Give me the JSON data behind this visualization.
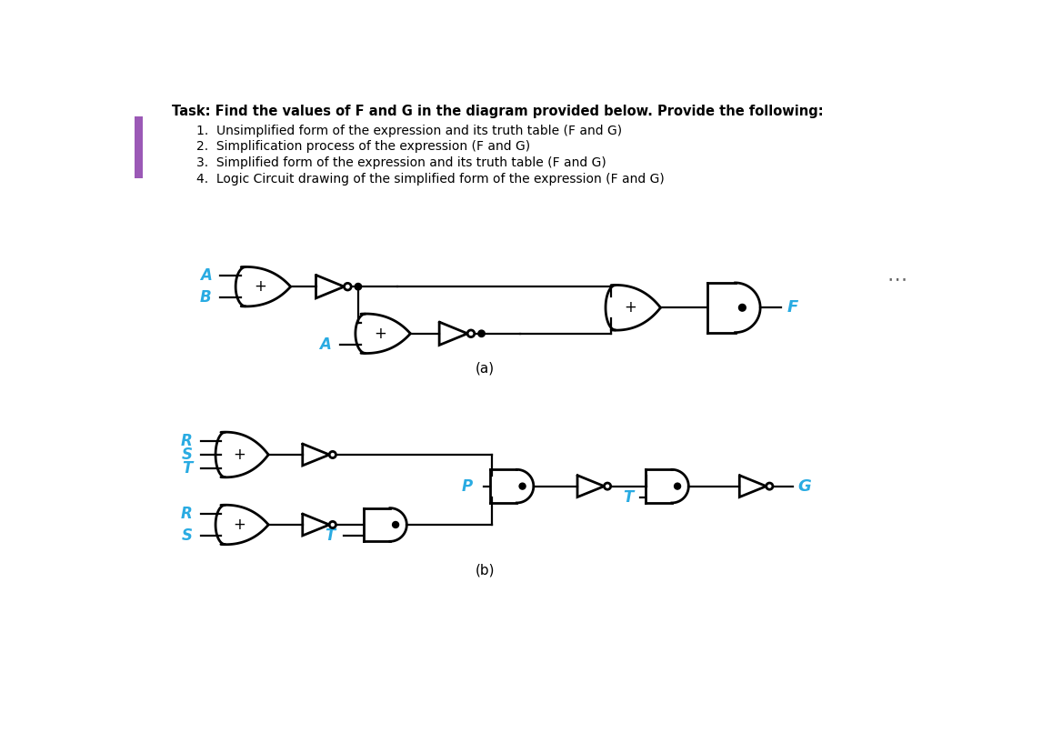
{
  "title": "Task: Find the values of F and G in the diagram provided below. Provide the following:",
  "items": [
    "1.  Unsimplified form of the expression and its truth table (F and G)",
    "2.  Simplification process of the expression (F and G)",
    "3.  Simplified form of the expression and its truth table (F and G)",
    "4.  Logic Circuit drawing of the simplified form of the expression (F and G)"
  ],
  "label_color": "#29ABE2",
  "gate_color": "#000000",
  "bg_color": "#ffffff",
  "sidebar_color": "#9b59b6",
  "dots_color": "#666666",
  "label_a": "A",
  "label_b": "B",
  "label_f": "F",
  "label_r": "R",
  "label_s": "S",
  "label_t": "T",
  "label_p": "P",
  "label_g": "G",
  "caption_a": "(a)",
  "caption_b": "(b)"
}
